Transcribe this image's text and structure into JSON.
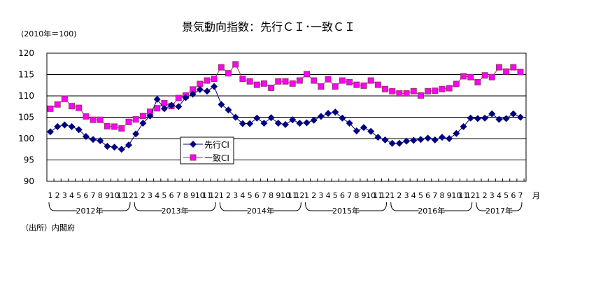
{
  "chart_data": {
    "type": "line",
    "title": "景気動向指数：先行ＣＩ･一致ＣＩ",
    "unit_note": "(2010年＝100)",
    "source": "（出所）内閣府",
    "month_suffix": "月",
    "ylim": [
      90,
      120
    ],
    "yticks": [
      90,
      95,
      100,
      105,
      110,
      115,
      120
    ],
    "month_labels": [
      "1",
      "2",
      "3",
      "4",
      "5",
      "6",
      "7",
      "8",
      "9",
      "10",
      "11",
      "12",
      "1",
      "2",
      "3",
      "4",
      "5",
      "6",
      "7",
      "8",
      "9",
      "10",
      "11",
      "12",
      "1",
      "2",
      "3",
      "4",
      "5",
      "6",
      "7",
      "8",
      "9",
      "10",
      "11",
      "12",
      "1",
      "2",
      "3",
      "4",
      "5",
      "6",
      "7",
      "8",
      "9",
      "10",
      "11",
      "12",
      "1",
      "2",
      "3",
      "4",
      "5",
      "6",
      "7",
      "8",
      "9",
      "10",
      "11",
      "12",
      "1",
      "2",
      "3",
      "4",
      "5",
      "6",
      "7"
    ],
    "year_labels": [
      "2012年",
      "2013年",
      "2014年",
      "2015年",
      "2016年",
      "2017年"
    ],
    "series": [
      {
        "name": "先行CI",
        "color": "#000080",
        "marker": "diamond",
        "values": [
          101.6,
          102.8,
          103.2,
          102.8,
          102.1,
          100.5,
          99.8,
          99.5,
          98.2,
          98.0,
          97.5,
          98.5,
          101.1,
          103.6,
          105.3,
          109.2,
          107.0,
          107.8,
          107.5,
          109.6,
          110.4,
          111.5,
          111.1,
          112.2,
          108.0,
          106.7,
          105.0,
          103.5,
          103.5,
          104.8,
          103.6,
          104.9,
          103.6,
          103.3,
          104.4,
          103.6,
          103.7,
          104.3,
          105.2,
          105.9,
          106.2,
          104.8,
          103.6,
          101.8,
          102.6,
          101.7,
          100.3,
          99.7,
          98.9,
          98.9,
          99.4,
          99.6,
          99.8,
          100.1,
          99.7,
          100.3,
          100.0,
          101.2,
          102.8,
          104.8,
          104.7,
          104.8,
          105.8,
          104.5,
          104.7,
          105.8,
          105.0
        ]
      },
      {
        "name": "一致CI",
        "color": "#ff00ff",
        "marker": "square",
        "values": [
          107.0,
          108.0,
          109.3,
          107.6,
          107.2,
          105.2,
          104.4,
          104.4,
          102.9,
          102.8,
          102.4,
          103.9,
          104.5,
          105.3,
          106.3,
          107.1,
          108.3,
          107.6,
          109.5,
          110.1,
          111.5,
          112.8,
          113.6,
          114.0,
          116.7,
          115.3,
          117.4,
          114.0,
          113.4,
          112.6,
          112.9,
          111.9,
          113.4,
          113.4,
          112.9,
          113.6,
          115.1,
          113.6,
          112.2,
          113.9,
          112.2,
          113.6,
          113.2,
          112.6,
          112.4,
          113.6,
          112.6,
          111.6,
          111.1,
          110.6,
          110.6,
          111.1,
          110.1,
          111.1,
          111.2,
          111.6,
          111.8,
          112.8,
          114.6,
          114.4,
          113.2,
          114.8,
          114.4,
          116.7,
          115.7,
          116.7,
          115.6
        ]
      }
    ]
  }
}
